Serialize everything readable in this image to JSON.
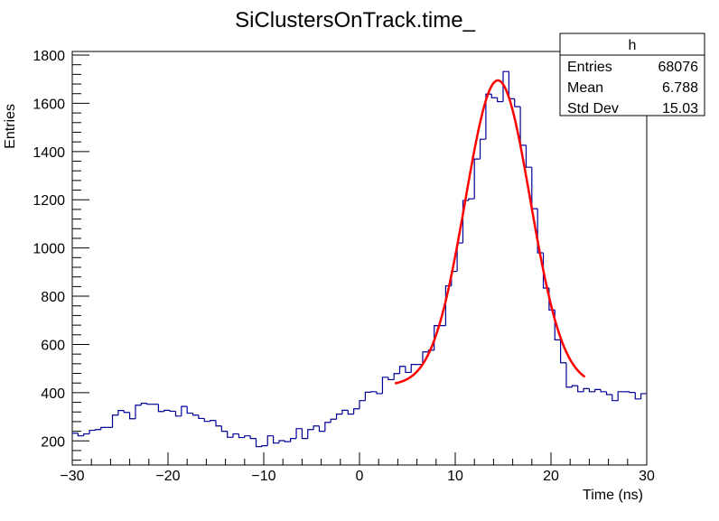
{
  "chart_data": {
    "type": "bar",
    "histogram": true,
    "title": "SiClustersOnTrack.time_",
    "xlabel": "Time (ns)",
    "ylabel": "Entries",
    "xlim": [
      -30,
      30
    ],
    "ylim": [
      100,
      1815
    ],
    "grid": false,
    "x_ticks": [
      "-30",
      "-20",
      "-10",
      "0",
      "10",
      "20",
      "30"
    ],
    "y_ticks": [
      "200",
      "400",
      "600",
      "800",
      "1000",
      "1200",
      "1400",
      "1600",
      "1800"
    ],
    "bin_width": 0.6,
    "series": [
      {
        "color": "#000099",
        "values": [
          232,
          221,
          229,
          244,
          247,
          256,
          256,
          307,
          326,
          318,
          292,
          348,
          356,
          352,
          352,
          322,
          327,
          323,
          303,
          343,
          315,
          307,
          293,
          281,
          285,
          262,
          240,
          215,
          229,
          214,
          221,
          210,
          176,
          180,
          221,
          191,
          201,
          197,
          210,
          251,
          210,
          247,
          262,
          240,
          277,
          290,
          311,
          327,
          311,
          333,
          367,
          402,
          404,
          396,
          464,
          454,
          479,
          509,
          484,
          517,
          517,
          569,
          576,
          678,
          678,
          843,
          903,
          1021,
          1197,
          1204,
          1369,
          1451,
          1638,
          1623,
          1607,
          1732,
          1619,
          1586,
          1426,
          1335,
          1163,
          980,
          834,
          743,
          619,
          524,
          423,
          429,
          404,
          417,
          404,
          413,
          404,
          392,
          367,
          404,
          404,
          401,
          374,
          396
        ]
      }
    ],
    "fit": {
      "function": "gaus+const",
      "color": "#ff0000",
      "constant": 430,
      "amplitude": 1265,
      "mean": 14.45,
      "sigma": 3.4,
      "range": [
        3.7,
        23.6
      ]
    },
    "stats_box": {
      "name": "h",
      "rows": [
        {
          "label": "Entries",
          "value": "68076"
        },
        {
          "label": "Mean",
          "value": "6.788"
        },
        {
          "label": "Std Dev",
          "value": "15.03"
        }
      ]
    }
  }
}
